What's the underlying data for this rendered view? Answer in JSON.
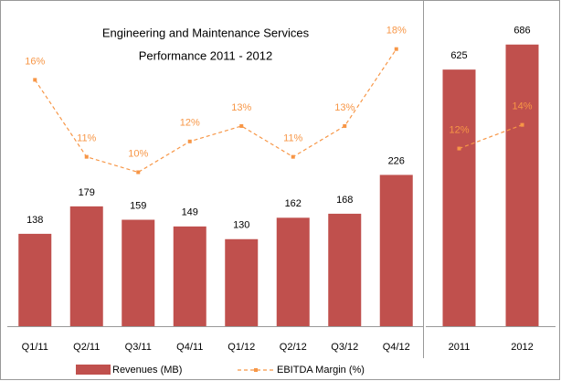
{
  "chart_data": [
    {
      "type": "bar",
      "title": "Engineering and Maintenance Services",
      "subtitle": "Performance 2011 - 2012",
      "categories": [
        "Q1/11",
        "Q2/11",
        "Q3/11",
        "Q4/11",
        "Q1/12",
        "Q2/12",
        "Q3/12",
        "Q4/12"
      ],
      "ylim": [
        0,
        460
      ],
      "y2lim": [
        0,
        20
      ],
      "legend": "bottom",
      "series": [
        {
          "name": "Revenues (MB)",
          "type": "bar",
          "color": "#c0504d",
          "values": [
            138,
            179,
            159,
            149,
            130,
            162,
            168,
            226
          ]
        },
        {
          "name": "EBITDA Margin (%)",
          "type": "line",
          "axis": "y2",
          "color": "#f79646",
          "values": [
            16,
            11,
            10,
            12,
            13,
            11,
            13,
            18
          ],
          "value_labels": [
            "16%",
            "11%",
            "10%",
            "12%",
            "13%",
            "11%",
            "13%",
            "18%"
          ]
        }
      ]
    },
    {
      "type": "bar",
      "categories": [
        "2011",
        "2012"
      ],
      "ylim": [
        0,
        750
      ],
      "y2lim": [
        -3,
        23
      ],
      "series": [
        {
          "type": "bar",
          "color": "#c0504d",
          "values": [
            625,
            686
          ]
        },
        {
          "type": "line",
          "axis": "y2",
          "color": "#f79646",
          "values": [
            12,
            14
          ],
          "value_labels": [
            "12%",
            "14%"
          ]
        }
      ]
    }
  ]
}
